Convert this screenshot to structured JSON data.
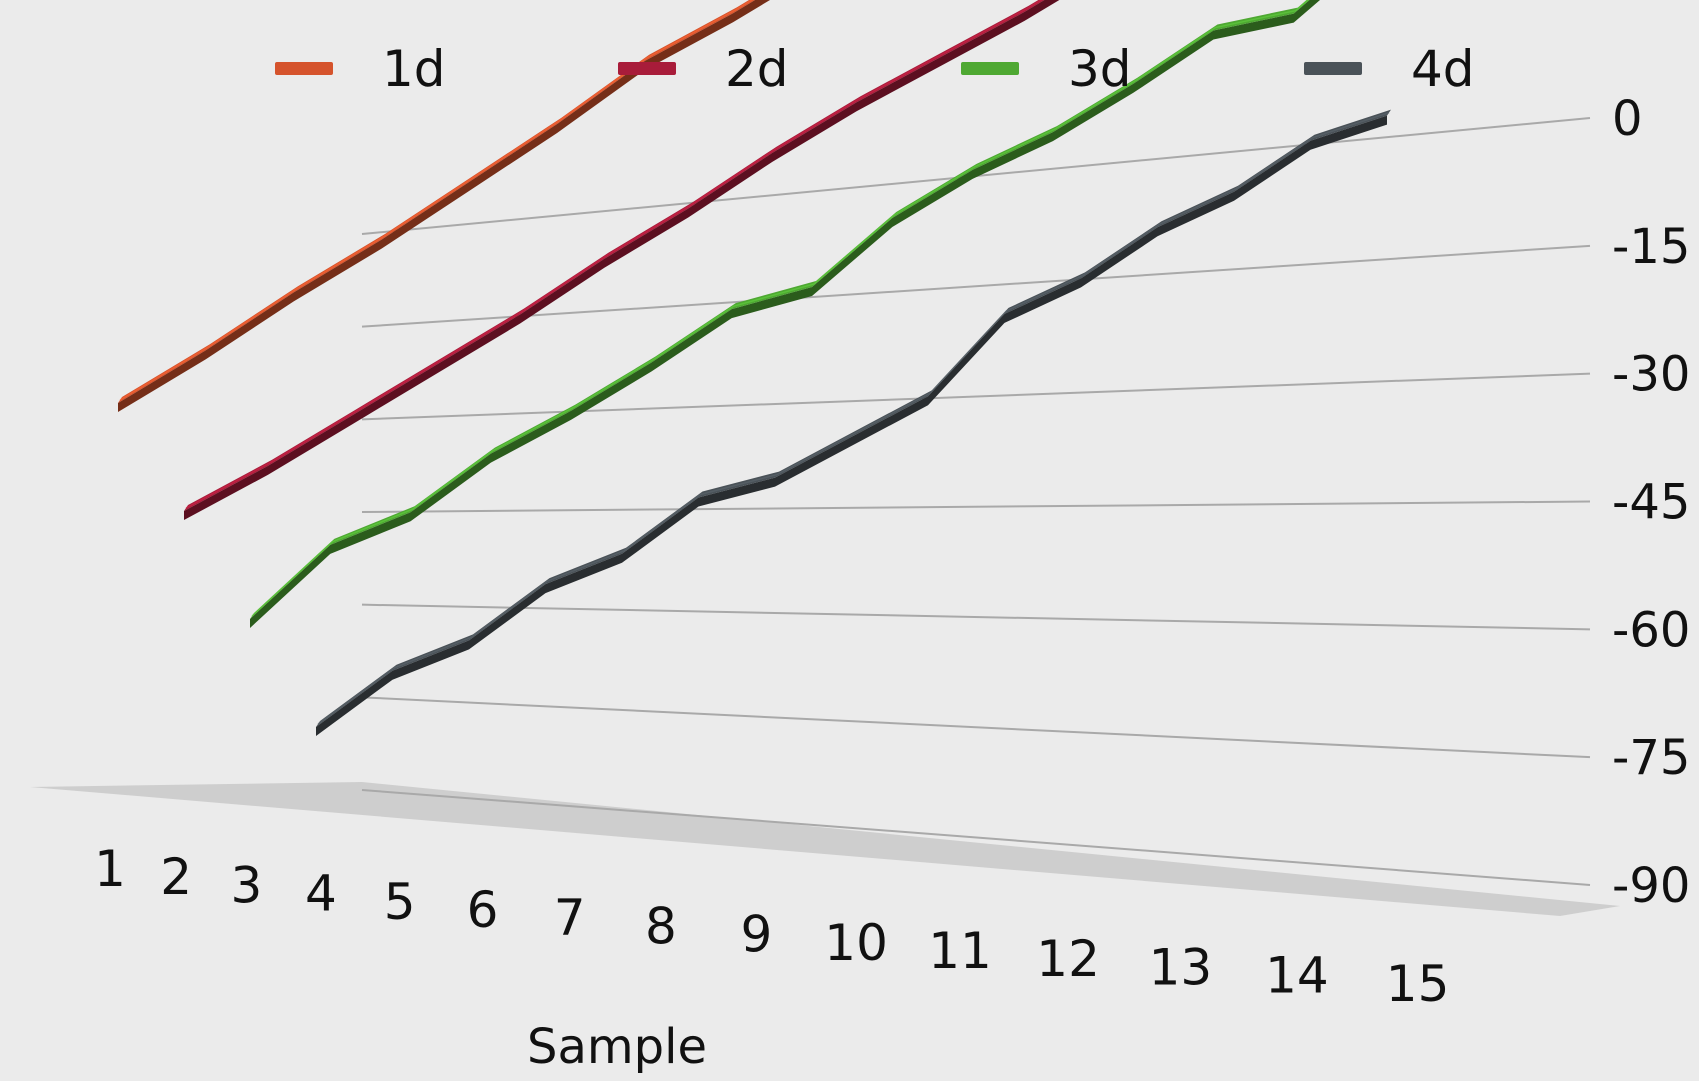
{
  "chart_data": {
    "type": "line",
    "style": "3d-ribbon",
    "title": "",
    "xlabel": "Sample",
    "ylabel": "",
    "categories": [
      "1",
      "2",
      "3",
      "4",
      "5",
      "6",
      "7",
      "8",
      "9",
      "10",
      "11",
      "12",
      "13",
      "14",
      "15"
    ],
    "ylim": [
      -90,
      0
    ],
    "yticks": [
      "0",
      "-15",
      "-30",
      "-45",
      "-60",
      "-75",
      "-90"
    ],
    "grid": true,
    "legend_position": "top",
    "series": [
      {
        "name": "1d",
        "color": "#d5532c",
        "values": [
          -32,
          -32,
          -31,
          -31,
          -30,
          -29,
          -27,
          -28,
          -28,
          -28,
          -27,
          -27,
          -26,
          -26,
          -25
        ]
      },
      {
        "name": "2d",
        "color": "#a81c3a",
        "values": [
          -45,
          -46,
          -46,
          -46,
          -46,
          -45,
          -45,
          -44,
          -44,
          -45,
          -46,
          -46,
          -46,
          -46,
          -45
        ]
      },
      {
        "name": "3d",
        "color": "#4ea832",
        "values": [
          -65,
          -60,
          -63,
          -61,
          -62,
          -62,
          -61,
          -66,
          -62,
          -62,
          -64,
          -64,
          -63,
          -69,
          -65
        ]
      },
      {
        "name": "4d",
        "color": "#4a5258",
        "values": [
          -71,
          -69,
          -72,
          -70,
          -73,
          -71,
          -76,
          -77,
          -78,
          -71,
          -73,
          -72,
          -74,
          -73,
          -77
        ]
      }
    ]
  }
}
